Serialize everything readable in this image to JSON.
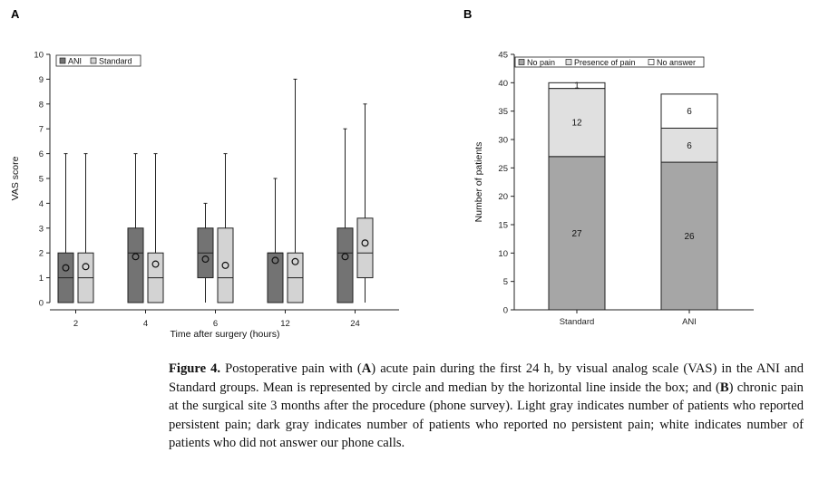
{
  "chart_data": [
    {
      "panel_label": "A",
      "type": "box",
      "xlabel": "Time after surgery (hours)",
      "ylabel": "VAS score",
      "ylim": [
        0,
        10
      ],
      "yticks": [
        0,
        1,
        2,
        3,
        4,
        5,
        6,
        7,
        8,
        9,
        10
      ],
      "categories": [
        "2",
        "4",
        "6",
        "12",
        "24"
      ],
      "legend": {
        "placement": "top-left",
        "entries": [
          "ANI",
          "Standard"
        ]
      },
      "colors": {
        "ANI": "#737373",
        "Standard": "#d3d3d3"
      },
      "series": [
        {
          "name": "ANI",
          "boxes": [
            {
              "whisker_low": 0,
              "q1": 0,
              "median": 1,
              "q3": 2,
              "whisker_high": 6,
              "mean": 1.4
            },
            {
              "whisker_low": 0,
              "q1": 0,
              "median": 2,
              "q3": 3,
              "whisker_high": 6,
              "mean": 1.85
            },
            {
              "whisker_low": 0,
              "q1": 1,
              "median": 2,
              "q3": 3,
              "whisker_high": 4,
              "mean": 1.75
            },
            {
              "whisker_low": 0,
              "q1": 0,
              "median": 2,
              "q3": 2,
              "whisker_high": 5,
              "mean": 1.7
            },
            {
              "whisker_low": 0,
              "q1": 0,
              "median": 2,
              "q3": 3,
              "whisker_high": 7,
              "mean": 1.85
            }
          ]
        },
        {
          "name": "Standard",
          "boxes": [
            {
              "whisker_low": 0,
              "q1": 0,
              "median": 1,
              "q3": 2,
              "whisker_high": 6,
              "mean": 1.45
            },
            {
              "whisker_low": 0,
              "q1": 0,
              "median": 1,
              "q3": 2,
              "whisker_high": 6,
              "mean": 1.55
            },
            {
              "whisker_low": 0,
              "q1": 0,
              "median": 1,
              "q3": 3,
              "whisker_high": 6,
              "mean": 1.5
            },
            {
              "whisker_low": 0,
              "q1": 0,
              "median": 1,
              "q3": 2,
              "whisker_high": 9,
              "mean": 1.65
            },
            {
              "whisker_low": 0,
              "q1": 1,
              "median": 2,
              "q3": 3.4,
              "whisker_high": 8,
              "mean": 2.4
            }
          ]
        }
      ]
    },
    {
      "panel_label": "B",
      "type": "bar",
      "stacked": true,
      "xlabel": "",
      "ylabel": "Number of patients",
      "ylim": [
        0,
        45
      ],
      "yticks": [
        0,
        5,
        10,
        15,
        20,
        25,
        30,
        35,
        40,
        45
      ],
      "categories": [
        "Standard",
        "ANI"
      ],
      "legend": {
        "placement": "top",
        "entries": [
          "No pain",
          "Presence of pain",
          "No answer"
        ]
      },
      "colors": {
        "No pain": "#a6a6a6",
        "Presence of pain": "#e0e0e0",
        "No answer": "#ffffff"
      },
      "series": [
        {
          "name": "No pain",
          "values": [
            27,
            26
          ]
        },
        {
          "name": "Presence of pain",
          "values": [
            12,
            6
          ]
        },
        {
          "name": "No answer",
          "values": [
            1,
            6
          ]
        }
      ]
    }
  ],
  "caption": {
    "figure_label": "Figure 4.",
    "text_1": " Postoperative pain with (",
    "ref_a": "A",
    "text_2": ") acute pain during the first 24 h, by visual analog scale (VAS) in the ANI and Standard groups. Mean is represented by circle and median by the horizontal line inside the box; and (",
    "ref_b": "B",
    "text_3": ") chronic pain at the surgical site 3 months after the procedure (phone survey). Light gray indicates number of patients who reported persistent pain; dark gray indicates number of patients who reported no persistent pain; white indicates number of patients who did not answer our phone calls."
  }
}
